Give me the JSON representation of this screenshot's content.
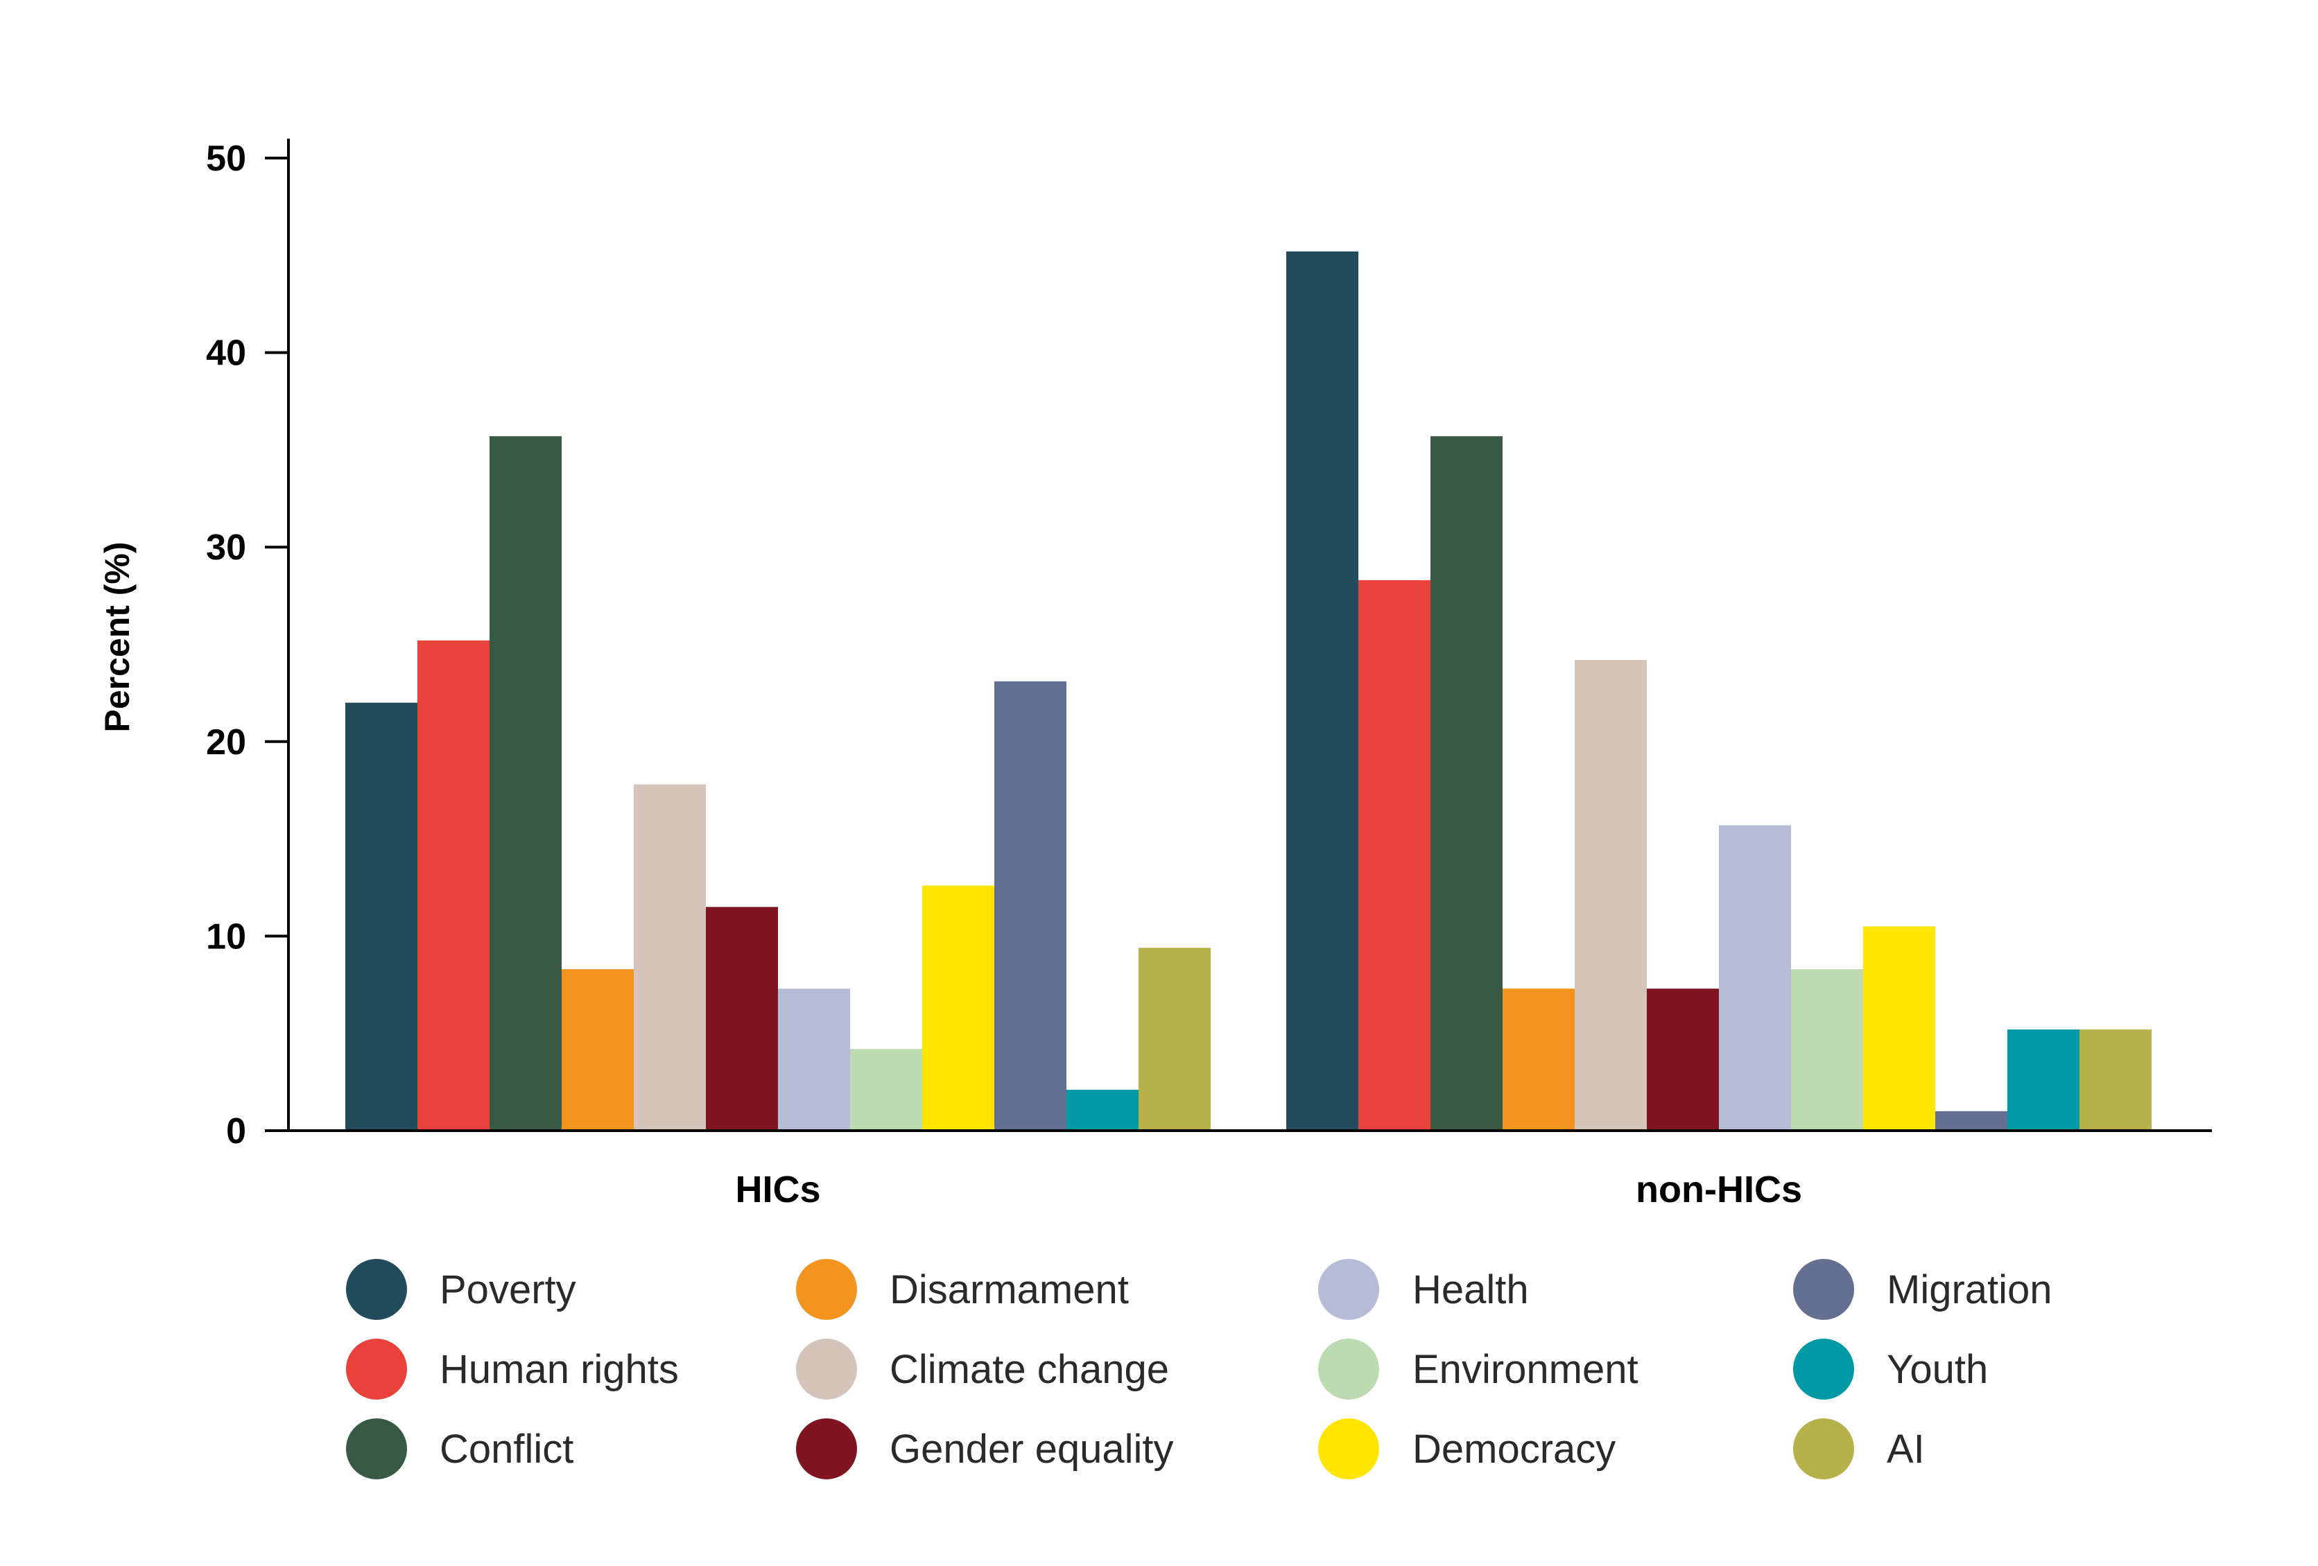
{
  "chart_data": {
    "type": "bar",
    "categories": [
      "HICs",
      "non-HICs"
    ],
    "ylabel": "Percent (%)",
    "xlabel": "",
    "ylim": [
      0,
      50
    ],
    "yticks": [
      "0",
      "10",
      "20",
      "30",
      "40",
      "50"
    ],
    "grid": false,
    "legend_position": "bottom",
    "series": [
      {
        "name": "Poverty",
        "color": "#234b5e",
        "values": [
          22,
          45.2
        ]
      },
      {
        "name": "Human rights",
        "color": "#e8423b",
        "values": [
          25.2,
          28.3
        ]
      },
      {
        "name": "Conflict",
        "color": "#385943",
        "values": [
          35.7,
          35.7
        ]
      },
      {
        "name": "Disarmament",
        "color": "#f2941e",
        "values": [
          8.3,
          7.3
        ]
      },
      {
        "name": "Climate change",
        "color": "#d4c4ba",
        "values": [
          17.8,
          24.2
        ]
      },
      {
        "name": "Gender equality",
        "color": "#7e1520",
        "values": [
          11.5,
          7.3
        ]
      },
      {
        "name": "Health",
        "color": "#b6bbd6",
        "values": [
          7.3,
          15.7
        ]
      },
      {
        "name": "Environment",
        "color": "#bcdbb1",
        "values": [
          4.2,
          8.3
        ]
      },
      {
        "name": "Democracy",
        "color": "#ffe500",
        "values": [
          12.6,
          10.5
        ]
      },
      {
        "name": "Migration",
        "color": "#656f91",
        "values": [
          23.1,
          1
        ]
      },
      {
        "name": "Youth",
        "color": "#0199a6",
        "values": [
          2.1,
          5.2
        ]
      },
      {
        "name": "AI",
        "color": "#b6b14a",
        "values": [
          9.4,
          5.2
        ]
      }
    ]
  }
}
